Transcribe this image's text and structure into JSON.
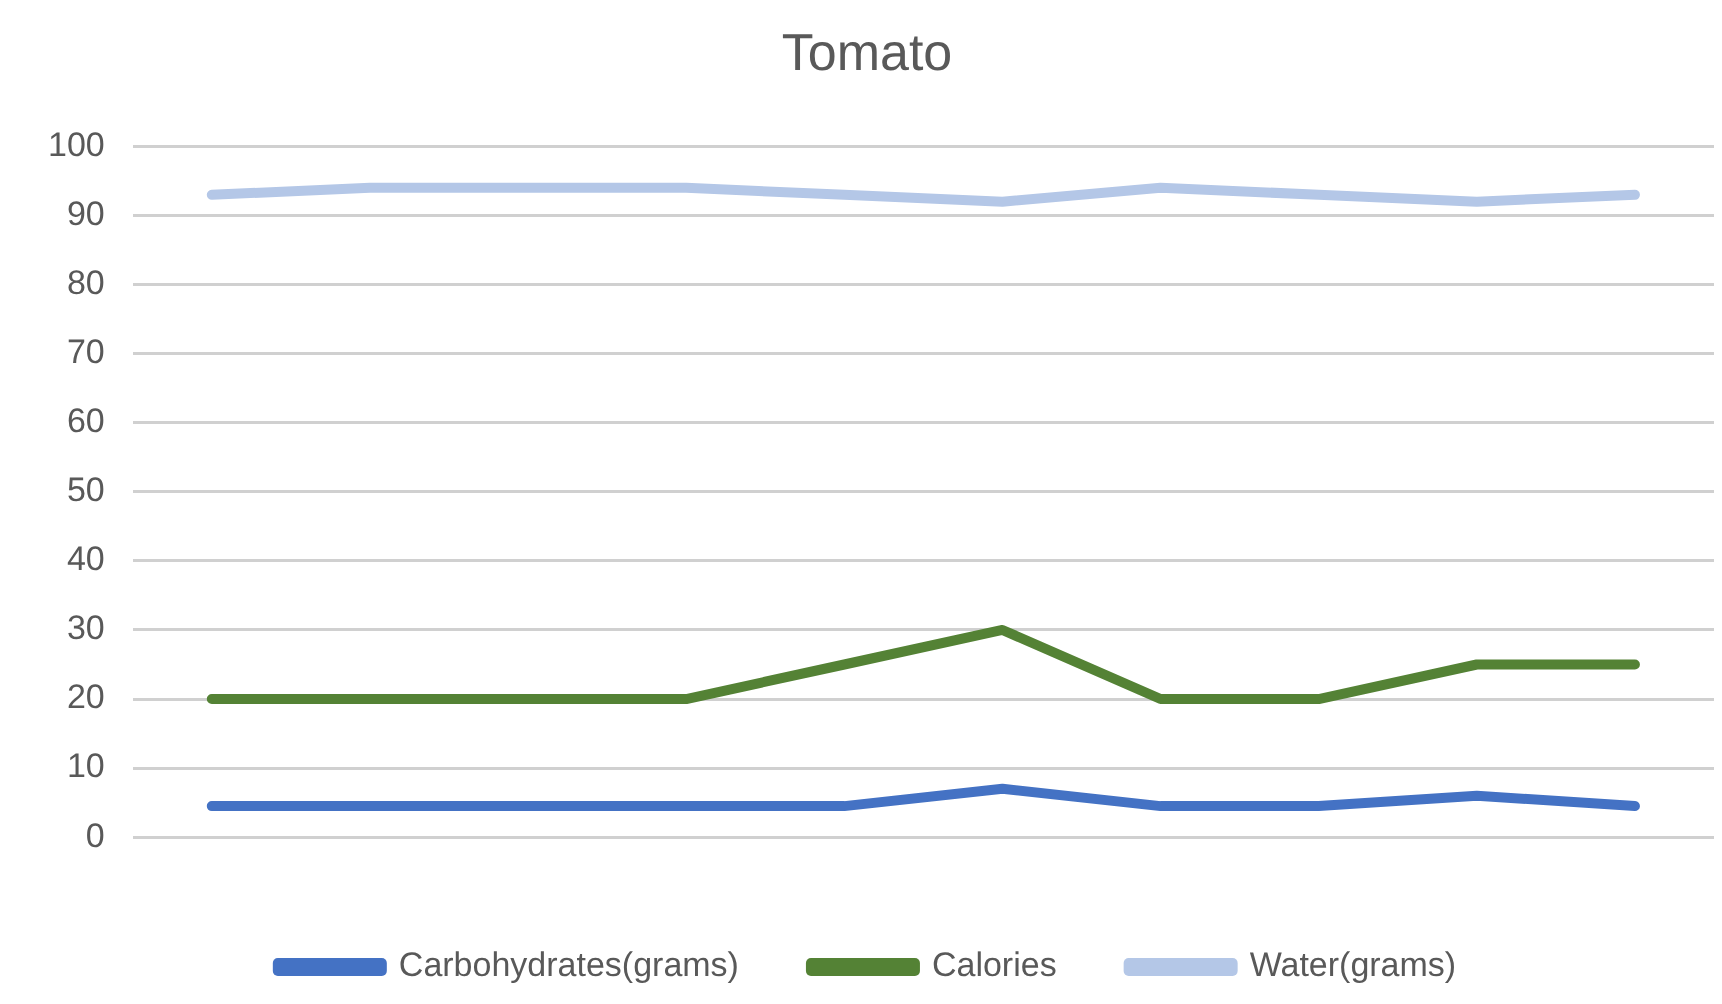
{
  "chart_data": {
    "type": "line",
    "title": "Tomato",
    "categories": [
      null,
      null,
      null,
      null,
      null,
      null,
      null,
      null,
      null,
      null
    ],
    "series": [
      {
        "name": "Carbohydrates(grams)",
        "color": "#4472c4",
        "values": [
          4.5,
          4.5,
          4.5,
          4.5,
          4.5,
          7,
          4.5,
          4.5,
          6,
          4.5
        ]
      },
      {
        "name": "Calories",
        "color": "#548235",
        "values": [
          20,
          20,
          20,
          20,
          25,
          30,
          20,
          20,
          25,
          25
        ]
      },
      {
        "name": "Water(grams)",
        "color": "#b4c7e7",
        "values": [
          93,
          94,
          94,
          94,
          93,
          92,
          94,
          93,
          92,
          93
        ]
      }
    ],
    "ylim": [
      0,
      100
    ],
    "yticks": [
      0,
      10,
      20,
      30,
      40,
      50,
      60,
      70,
      80,
      90,
      100
    ],
    "grid": "y",
    "legend": "bottom",
    "marker": "none",
    "line_style": "solid"
  }
}
